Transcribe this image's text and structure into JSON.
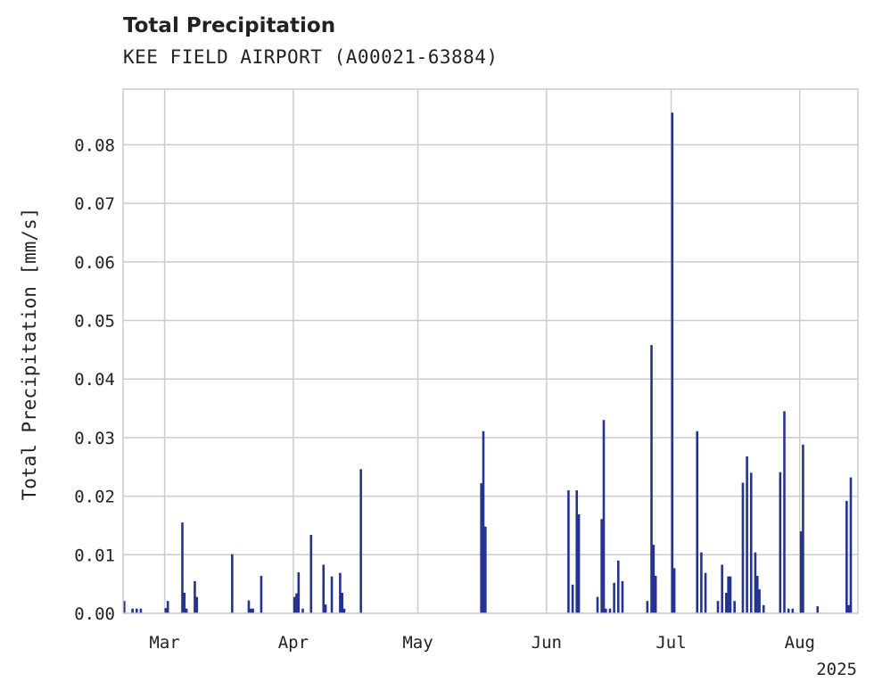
{
  "chart_data": {
    "type": "bar",
    "title": "Total Precipitation",
    "subtitle": "KEE FIELD AIRPORT (A00021-63884)",
    "ylabel": "Total Precipitation [mm/s]",
    "xlabel": "",
    "year_label": "2025",
    "xlim": [
      "2025-02-19",
      "2025-08-15"
    ],
    "ylim": [
      0,
      0.0895
    ],
    "grid": true,
    "color": "#24338f",
    "x_ticks": [
      {
        "date": "2025-03-01",
        "label": "Mar"
      },
      {
        "date": "2025-04-01",
        "label": "Apr"
      },
      {
        "date": "2025-05-01",
        "label": "May"
      },
      {
        "date": "2025-06-01",
        "label": "Jun"
      },
      {
        "date": "2025-07-01",
        "label": "Jul"
      },
      {
        "date": "2025-08-01",
        "label": "Aug"
      }
    ],
    "y_ticks": [
      {
        "value": 0.0,
        "label": "0.00"
      },
      {
        "value": 0.01,
        "label": "0.01"
      },
      {
        "value": 0.02,
        "label": "0.02"
      },
      {
        "value": 0.03,
        "label": "0.03"
      },
      {
        "value": 0.04,
        "label": "0.04"
      },
      {
        "value": 0.05,
        "label": "0.05"
      },
      {
        "value": 0.06,
        "label": "0.06"
      },
      {
        "value": 0.07,
        "label": "0.07"
      },
      {
        "value": 0.08,
        "label": "0.08"
      }
    ],
    "x": [
      "2025-02-19",
      "2025-02-21",
      "2025-02-22",
      "2025-02-23",
      "2025-03-01",
      "2025-03-01T12",
      "2025-03-05",
      "2025-03-05T12",
      "2025-03-06",
      "2025-03-08",
      "2025-03-08T12",
      "2025-03-17",
      "2025-03-21",
      "2025-03-21T12",
      "2025-03-22",
      "2025-03-24",
      "2025-04-01",
      "2025-04-01T12",
      "2025-04-02",
      "2025-04-03",
      "2025-04-05",
      "2025-04-08",
      "2025-04-08T12",
      "2025-04-10",
      "2025-04-12",
      "2025-04-12T12",
      "2025-04-13",
      "2025-04-17",
      "2025-05-16",
      "2025-05-16T12",
      "2025-05-17",
      "2025-06-06",
      "2025-06-07",
      "2025-06-08",
      "2025-06-08T12",
      "2025-06-13",
      "2025-06-14",
      "2025-06-14T12",
      "2025-06-15",
      "2025-06-16",
      "2025-06-17",
      "2025-06-18",
      "2025-06-19",
      "2025-06-25",
      "2025-06-26",
      "2025-06-26T12",
      "2025-06-27",
      "2025-07-01",
      "2025-07-01T12",
      "2025-07-07",
      "2025-07-08",
      "2025-07-09",
      "2025-07-12",
      "2025-07-13",
      "2025-07-14",
      "2025-07-14T12",
      "2025-07-15",
      "2025-07-16",
      "2025-07-18",
      "2025-07-19",
      "2025-07-20",
      "2025-07-21",
      "2025-07-21T12",
      "2025-07-22",
      "2025-07-23",
      "2025-07-27",
      "2025-07-28",
      "2025-07-29",
      "2025-07-30",
      "2025-08-01",
      "2025-08-01T12",
      "2025-08-05",
      "2025-08-12",
      "2025-08-12T12",
      "2025-08-13"
    ],
    "values": [
      0.0021,
      0.0008,
      0.0008,
      0.0008,
      0.0009,
      0.0021,
      0.0155,
      0.0035,
      0.0008,
      0.0055,
      0.0028,
      0.0101,
      0.0022,
      0.0008,
      0.0008,
      0.0064,
      0.0028,
      0.0034,
      0.007,
      0.0008,
      0.0134,
      0.0083,
      0.0015,
      0.0063,
      0.0069,
      0.0035,
      0.0008,
      0.0246,
      0.0222,
      0.0311,
      0.0148,
      0.021,
      0.0049,
      0.021,
      0.0169,
      0.0028,
      0.0161,
      0.033,
      0.0008,
      0.0008,
      0.0052,
      0.009,
      0.0055,
      0.0021,
      0.0458,
      0.0117,
      0.0064,
      0.0855,
      0.0077,
      0.0311,
      0.0104,
      0.0069,
      0.0021,
      0.0083,
      0.0035,
      0.0063,
      0.0063,
      0.0021,
      0.0223,
      0.0268,
      0.024,
      0.0104,
      0.0064,
      0.0041,
      0.0014,
      0.0241,
      0.0345,
      0.0008,
      0.0008,
      0.014,
      0.0288,
      0.0012,
      0.0192,
      0.0014,
      0.0232
    ]
  }
}
